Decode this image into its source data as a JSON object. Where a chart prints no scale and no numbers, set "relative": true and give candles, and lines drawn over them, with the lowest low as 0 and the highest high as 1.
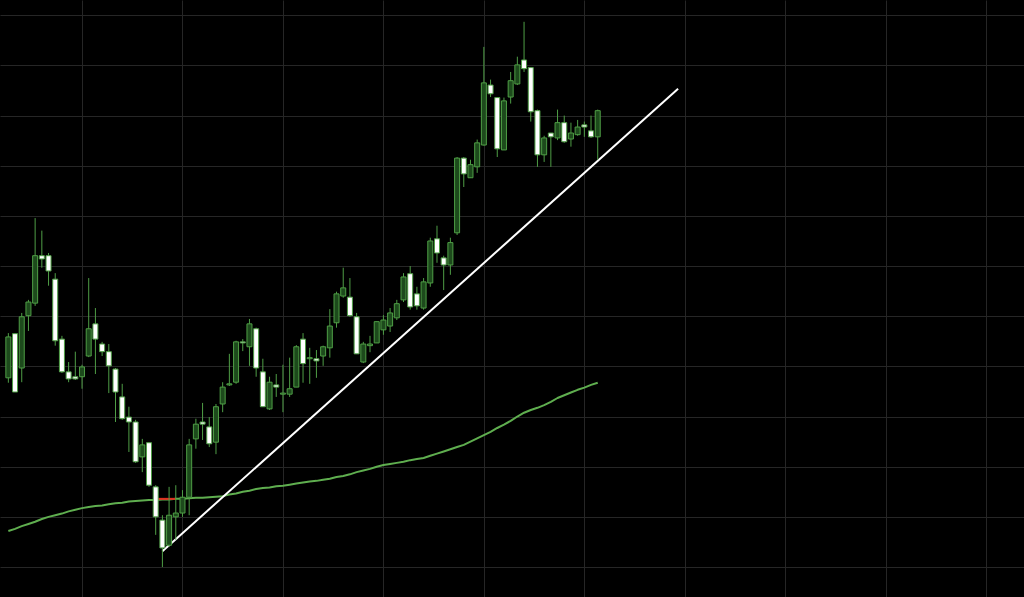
{
  "chart_data": {
    "type": "candlestick",
    "relative": true,
    "categories": [
      null,
      null,
      null,
      null,
      null,
      null,
      null,
      null,
      null,
      null,
      null,
      null,
      null,
      null,
      null,
      null,
      null,
      null,
      null,
      null,
      null,
      null,
      null,
      null,
      null,
      null,
      null,
      null,
      null,
      null,
      null,
      null,
      null,
      null,
      null,
      null,
      null,
      null,
      null,
      null,
      null,
      null,
      null,
      null,
      null,
      null,
      null,
      null,
      null,
      null,
      null,
      null,
      null,
      null,
      null,
      null,
      null,
      null,
      null,
      null,
      null,
      null,
      null,
      null,
      null,
      null,
      null,
      null,
      null,
      null,
      null,
      null,
      null,
      null,
      null,
      null,
      null,
      null,
      null,
      null,
      null,
      null,
      null,
      null,
      null,
      null,
      null,
      null,
      null,
      null,
      null,
      null,
      null,
      null,
      null,
      null,
      null,
      null,
      null,
      null,
      null,
      null,
      null,
      null,
      null,
      null,
      null,
      null,
      null,
      null,
      null,
      null,
      null,
      null,
      null,
      null,
      null,
      null,
      null,
      null,
      null,
      null,
      null,
      null,
      null,
      null,
      null,
      null,
      null,
      null,
      null,
      null,
      null,
      null,
      null,
      null,
      null,
      null,
      null,
      null,
      null,
      null,
      null,
      null,
      null,
      null,
      null,
      null,
      null,
      null,
      null
    ],
    "ohlc": [
      [
        0.347,
        0.429,
        0.338,
        0.422
      ],
      [
        0.428,
        0.428,
        0.321,
        0.321
      ],
      [
        0.365,
        0.466,
        0.339,
        0.459
      ],
      [
        0.461,
        0.49,
        0.433,
        0.486
      ],
      [
        0.484,
        0.64,
        0.479,
        0.571
      ],
      [
        0.571,
        0.617,
        0.549,
        0.565
      ],
      [
        0.571,
        0.576,
        0.516,
        0.543
      ],
      [
        0.528,
        0.539,
        0.406,
        0.415
      ],
      [
        0.418,
        0.424,
        0.356,
        0.358
      ],
      [
        0.358,
        0.376,
        0.339,
        0.345
      ],
      [
        0.349,
        0.395,
        0.343,
        0.345
      ],
      [
        0.349,
        0.371,
        0.327,
        0.367
      ],
      [
        0.387,
        0.53,
        0.385,
        0.437
      ],
      [
        0.446,
        0.475,
        0.354,
        0.418
      ],
      [
        0.409,
        0.413,
        0.387,
        0.395
      ],
      [
        0.395,
        0.409,
        0.319,
        0.369
      ],
      [
        0.363,
        0.365,
        0.266,
        0.321
      ],
      [
        0.312,
        0.336,
        0.27,
        0.272
      ],
      [
        0.275,
        0.294,
        0.211,
        0.266
      ],
      [
        0.266,
        0.27,
        0.191,
        0.193
      ],
      [
        0.202,
        0.235,
        0.174,
        0.224
      ],
      [
        0.228,
        0.228,
        0.147,
        0.15
      ],
      [
        0.147,
        0.15,
        0.059,
        0.092
      ],
      [
        0.086,
        0.095,
        0.0,
        0.035
      ],
      [
        0.04,
        0.147,
        0.037,
        0.095
      ],
      [
        0.092,
        0.15,
        0.05,
        0.099
      ],
      [
        0.099,
        0.141,
        0.092,
        0.128
      ],
      [
        0.128,
        0.235,
        0.095,
        0.224
      ],
      [
        0.235,
        0.272,
        0.217,
        0.262
      ],
      [
        0.266,
        0.301,
        0.233,
        0.262
      ],
      [
        0.257,
        0.275,
        0.22,
        0.226
      ],
      [
        0.229,
        0.299,
        0.207,
        0.294
      ],
      [
        0.299,
        0.339,
        0.284,
        0.33
      ],
      [
        0.334,
        0.391,
        0.332,
        0.336
      ],
      [
        0.339,
        0.415,
        0.336,
        0.413
      ],
      [
        0.413,
        0.418,
        0.396,
        0.411
      ],
      [
        0.404,
        0.455,
        0.369,
        0.446
      ],
      [
        0.437,
        0.439,
        0.349,
        0.365
      ],
      [
        0.358,
        0.382,
        0.294,
        0.294
      ],
      [
        0.29,
        0.349,
        0.288,
        0.339
      ],
      [
        0.334,
        0.354,
        0.312,
        0.33
      ],
      [
        0.317,
        0.371,
        0.284,
        0.319
      ],
      [
        0.317,
        0.384,
        0.312,
        0.327
      ],
      [
        0.33,
        0.407,
        0.33,
        0.404
      ],
      [
        0.418,
        0.429,
        0.338,
        0.373
      ],
      [
        0.382,
        0.402,
        0.336,
        0.384
      ],
      [
        0.382,
        0.398,
        0.347,
        0.378
      ],
      [
        0.387,
        0.406,
        0.369,
        0.404
      ],
      [
        0.402,
        0.473,
        0.384,
        0.442
      ],
      [
        0.448,
        0.505,
        0.439,
        0.501
      ],
      [
        0.497,
        0.549,
        0.494,
        0.512
      ],
      [
        0.495,
        0.53,
        0.459,
        0.461
      ],
      [
        0.459,
        0.466,
        0.391,
        0.391
      ],
      [
        0.376,
        0.413,
        0.374,
        0.409
      ],
      [
        0.406,
        0.424,
        0.394,
        0.409
      ],
      [
        0.411,
        0.45,
        0.411,
        0.45
      ],
      [
        0.435,
        0.462,
        0.426,
        0.453
      ],
      [
        0.442,
        0.475,
        0.431,
        0.466
      ],
      [
        0.457,
        0.49,
        0.453,
        0.483
      ],
      [
        0.49,
        0.539,
        0.486,
        0.532
      ],
      [
        0.538,
        0.552,
        0.472,
        0.477
      ],
      [
        0.501,
        0.514,
        0.472,
        0.479
      ],
      [
        0.475,
        0.53,
        0.472,
        0.523
      ],
      [
        0.521,
        0.604,
        0.514,
        0.598
      ],
      [
        0.602,
        0.626,
        0.558,
        0.576
      ],
      [
        0.567,
        0.571,
        0.508,
        0.554
      ],
      [
        0.554,
        0.604,
        0.536,
        0.595
      ],
      [
        0.613,
        0.752,
        0.609,
        0.75
      ],
      [
        0.75,
        0.752,
        0.697,
        0.721
      ],
      [
        0.714,
        0.747,
        0.714,
        0.738
      ],
      [
        0.734,
        0.784,
        0.723,
        0.778
      ],
      [
        0.774,
        0.954,
        0.773,
        0.888
      ],
      [
        0.884,
        0.894,
        0.862,
        0.868
      ],
      [
        0.861,
        0.862,
        0.752,
        0.767
      ],
      [
        0.765,
        0.861,
        0.765,
        0.855
      ],
      [
        0.862,
        0.908,
        0.85,
        0.892
      ],
      [
        0.886,
        0.936,
        0.884,
        0.921
      ],
      [
        0.93,
        1.0,
        0.908,
        0.914
      ],
      [
        0.916,
        0.917,
        0.817,
        0.835
      ],
      [
        0.837,
        0.839,
        0.734,
        0.756
      ],
      [
        0.756,
        0.791,
        0.743,
        0.787
      ],
      [
        0.796,
        0.796,
        0.734,
        0.789
      ],
      [
        0.787,
        0.839,
        0.783,
        0.815
      ],
      [
        0.815,
        0.828,
        0.778,
        0.78
      ],
      [
        0.785,
        0.815,
        0.771,
        0.796
      ],
      [
        0.793,
        0.82,
        0.791,
        0.807
      ],
      [
        0.811,
        0.817,
        0.789,
        0.807
      ],
      [
        0.8,
        0.828,
        0.787,
        0.789
      ],
      [
        0.789,
        0.839,
        0.747,
        0.837
      ],
      null,
      null,
      null,
      null,
      null,
      null,
      null,
      null,
      null,
      null,
      null,
      null,
      null,
      null,
      null,
      null,
      null,
      null,
      null,
      null,
      null,
      null,
      null,
      null,
      null,
      null,
      null,
      null,
      null,
      null,
      null,
      null,
      null,
      null,
      null,
      null,
      null,
      null,
      null,
      null,
      null,
      null,
      null,
      null,
      null,
      null,
      null,
      null,
      null,
      null,
      null,
      null,
      null,
      null,
      null,
      null,
      null,
      null,
      null,
      null,
      null,
      null
    ],
    "color": "#4f9e46",
    "grid": true,
    "series": [
      {
        "type": "line",
        "color": "#5fae4f",
        "values": [
          0.066,
          0.07,
          0.075,
          0.079,
          0.083,
          0.088,
          0.092,
          0.095,
          0.098,
          0.102,
          0.105,
          0.108,
          0.11,
          0.112,
          0.113,
          0.115,
          0.117,
          0.118,
          0.12,
          0.121,
          0.122,
          0.123,
          0.123,
          0.124,
          0.124,
          0.125,
          0.125,
          0.126,
          0.127,
          0.127,
          0.128,
          0.129,
          0.13,
          0.133,
          0.135,
          0.138,
          0.14,
          0.143,
          0.145,
          0.146,
          0.148,
          0.149,
          0.151,
          0.153,
          0.155,
          0.157,
          0.158,
          0.16,
          0.162,
          0.165,
          0.167,
          0.17,
          0.174,
          0.177,
          0.18,
          0.184,
          0.187,
          0.189,
          0.191,
          0.193,
          0.196,
          0.198,
          0.2,
          0.204,
          0.208,
          0.212,
          0.216,
          0.22,
          0.224,
          0.23,
          0.236,
          0.242,
          0.248,
          0.255,
          0.261,
          0.268,
          0.276,
          0.283,
          0.288,
          0.292,
          0.297,
          0.303,
          0.31,
          0.315,
          0.32,
          0.325,
          0.329,
          0.334,
          0.338,
          null,
          null,
          null,
          null,
          null,
          null,
          null,
          null,
          null,
          null,
          null,
          null,
          null,
          null,
          null,
          null,
          null,
          null,
          null,
          null,
          null,
          null,
          null,
          null,
          null,
          null,
          null,
          null,
          null,
          null,
          null,
          null,
          null,
          null,
          null,
          null,
          null,
          null,
          null,
          null,
          null,
          null,
          null,
          null,
          null,
          null,
          null,
          null,
          null,
          null,
          null,
          null,
          null,
          null,
          null,
          null,
          null,
          null,
          null,
          null,
          null,
          null
        ]
      },
      {
        "type": "line",
        "color": "#e03020",
        "values": [
          null,
          null,
          null,
          null,
          null,
          null,
          null,
          null,
          null,
          null,
          null,
          null,
          null,
          null,
          null,
          null,
          null,
          null,
          null,
          null,
          null,
          null,
          0.125,
          0.125,
          0.125,
          0.125,
          null,
          null,
          null,
          null,
          null,
          null,
          null,
          null,
          null,
          null,
          null,
          null,
          null,
          null,
          null,
          null,
          null,
          null,
          null,
          null,
          null,
          null,
          null,
          null,
          null,
          null,
          null,
          null,
          null,
          null,
          null,
          null,
          null,
          null,
          null,
          null,
          null,
          null,
          null,
          null,
          null,
          null,
          null,
          null,
          null,
          null,
          null,
          null,
          null,
          null,
          null,
          null,
          null,
          null,
          null,
          null,
          null,
          null,
          null,
          null,
          null,
          null,
          null,
          null,
          null,
          null,
          null,
          null,
          null,
          null,
          null,
          null,
          null,
          null,
          null,
          null,
          null,
          null,
          null,
          null,
          null,
          null,
          null,
          null,
          null,
          null,
          null,
          null,
          null,
          null,
          null,
          null,
          null,
          null,
          null,
          null,
          null,
          null,
          null,
          null,
          null,
          null,
          null,
          null,
          null,
          null,
          null,
          null,
          null,
          null,
          null,
          null,
          null,
          null,
          null,
          null,
          null,
          null,
          null,
          null,
          null,
          null,
          null,
          null,
          null
        ]
      },
      {
        "type": "line",
        "color": "#ffffff",
        "values": [
          null,
          null,
          null,
          null,
          null,
          null,
          null,
          null,
          null,
          null,
          null,
          null,
          null,
          null,
          null,
          null,
          null,
          null,
          null,
          null,
          null,
          null,
          null,
          0.029,
          null,
          null,
          null,
          null,
          null,
          null,
          null,
          null,
          null,
          null,
          null,
          null,
          null,
          null,
          null,
          null,
          null,
          null,
          null,
          null,
          null,
          null,
          null,
          null,
          null,
          null,
          null,
          null,
          null,
          null,
          null,
          null,
          null,
          null,
          null,
          null,
          null,
          null,
          null,
          null,
          null,
          null,
          null,
          null,
          null,
          null,
          null,
          null,
          null,
          null,
          null,
          null,
          null,
          null,
          null,
          null,
          null,
          null,
          null,
          null,
          null,
          null,
          null,
          null,
          null,
          null,
          null,
          null,
          null,
          null,
          null,
          null,
          null,
          null,
          null,
          null,
          0.877,
          null,
          null,
          null,
          null,
          null,
          null,
          null,
          null,
          null,
          null,
          null,
          null,
          null,
          null,
          null,
          null,
          null,
          null,
          null,
          null,
          null,
          null,
          null,
          null,
          null,
          null,
          null,
          null,
          null,
          null,
          null,
          null,
          null,
          null,
          null,
          null,
          null,
          null,
          null,
          null,
          null,
          null,
          null,
          null,
          null,
          null,
          null,
          null,
          null,
          null
        ]
      }
    ]
  }
}
